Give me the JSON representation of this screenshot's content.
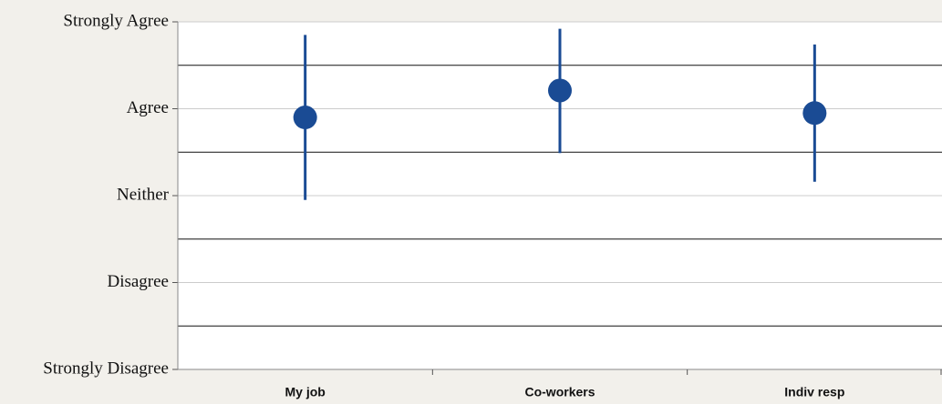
{
  "chart_data": {
    "type": "dot_range",
    "categories": [
      "My job",
      "Co-workers",
      "Indiv resp"
    ],
    "series": [
      {
        "color": "#1a4b94",
        "values": [
          3.9,
          4.21,
          3.95
        ],
        "lower": [
          2.95,
          3.49,
          3.16
        ],
        "upper": [
          4.85,
          4.92,
          4.74
        ]
      }
    ],
    "ylim": [
      1,
      5
    ],
    "yticks": [
      {
        "value": 1,
        "label": "Strongly Disagree"
      },
      {
        "value": 2,
        "label": "Disagree"
      },
      {
        "value": 3,
        "label": "Neither"
      },
      {
        "value": 4,
        "label": "Agree"
      },
      {
        "value": 5,
        "label": "Strongly Agree"
      }
    ],
    "yminor": [
      1.5,
      2.5,
      3.5,
      4.5
    ],
    "grid": true
  }
}
